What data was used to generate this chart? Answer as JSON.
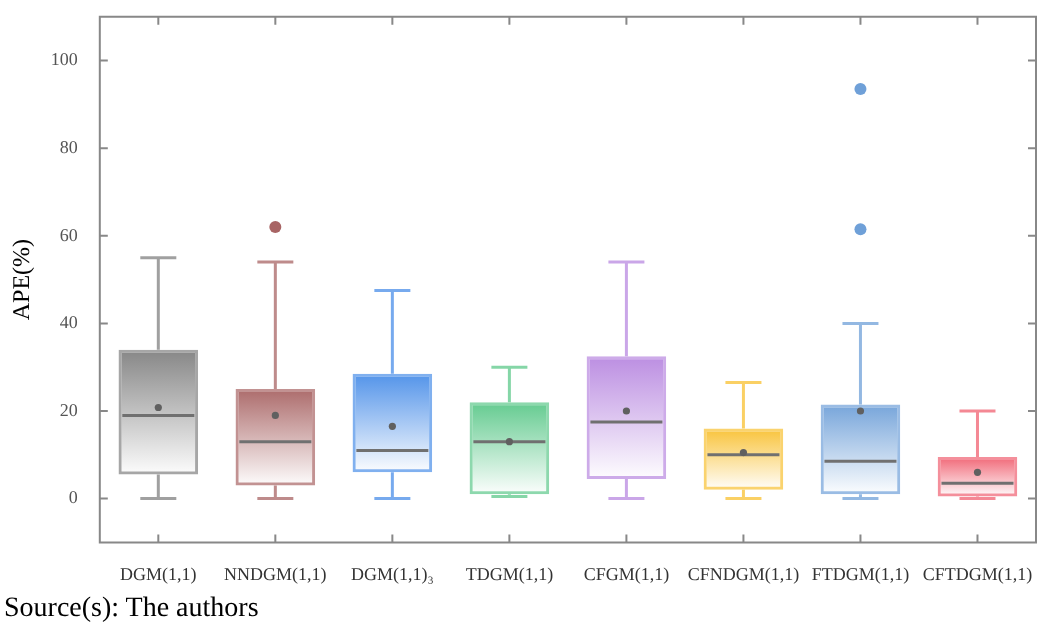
{
  "chart_data": {
    "type": "box",
    "ylabel": "APE(%)",
    "categories": [
      "DGM(1,1)",
      "NNDGM(1,1)",
      "DGM(1,1)₃",
      "TDGM(1,1)",
      "CFGM(1,1)",
      "CFNDGM(1,1)",
      "FTDGM(1,1)",
      "CFTDGM(1,1)"
    ],
    "colors": [
      "#808080",
      "#a86464",
      "#4a8ee8",
      "#5cc88a",
      "#b888e0",
      "#f8c030",
      "#6fa0d8",
      "#f06070"
    ],
    "boxes": [
      {
        "low": 0,
        "q1": 5.5,
        "median": 19,
        "q3": 34,
        "high": 55,
        "mean": 20.8
      },
      {
        "low": 0,
        "q1": 3,
        "median": 13,
        "q3": 25,
        "high": 54,
        "mean": 19,
        "outliers": [
          62
        ]
      },
      {
        "low": 0,
        "q1": 6,
        "median": 11,
        "q3": 28.5,
        "high": 47.5,
        "mean": 16.5
      },
      {
        "low": 0.5,
        "q1": 1,
        "median": 13,
        "q3": 22,
        "high": 30,
        "mean": 13
      },
      {
        "low": 0,
        "q1": 4.5,
        "median": 17.5,
        "q3": 32.5,
        "high": 54,
        "mean": 20
      },
      {
        "low": 0,
        "q1": 2,
        "median": 10,
        "q3": 16,
        "high": 26.5,
        "mean": 10.5
      },
      {
        "low": 0,
        "q1": 1,
        "median": 8.5,
        "q3": 21.5,
        "high": 40,
        "mean": 20,
        "outliers": [
          61.5,
          93.5
        ]
      },
      {
        "low": 0,
        "q1": 0.5,
        "median": 3.5,
        "q3": 9.5,
        "high": 20,
        "mean": 6
      }
    ],
    "ylim": [
      -10,
      110
    ],
    "yticks": [
      0,
      20,
      40,
      60,
      80,
      100
    ],
    "grid": false,
    "legend": false,
    "annotations": [
      "Source(s): The authors"
    ]
  }
}
